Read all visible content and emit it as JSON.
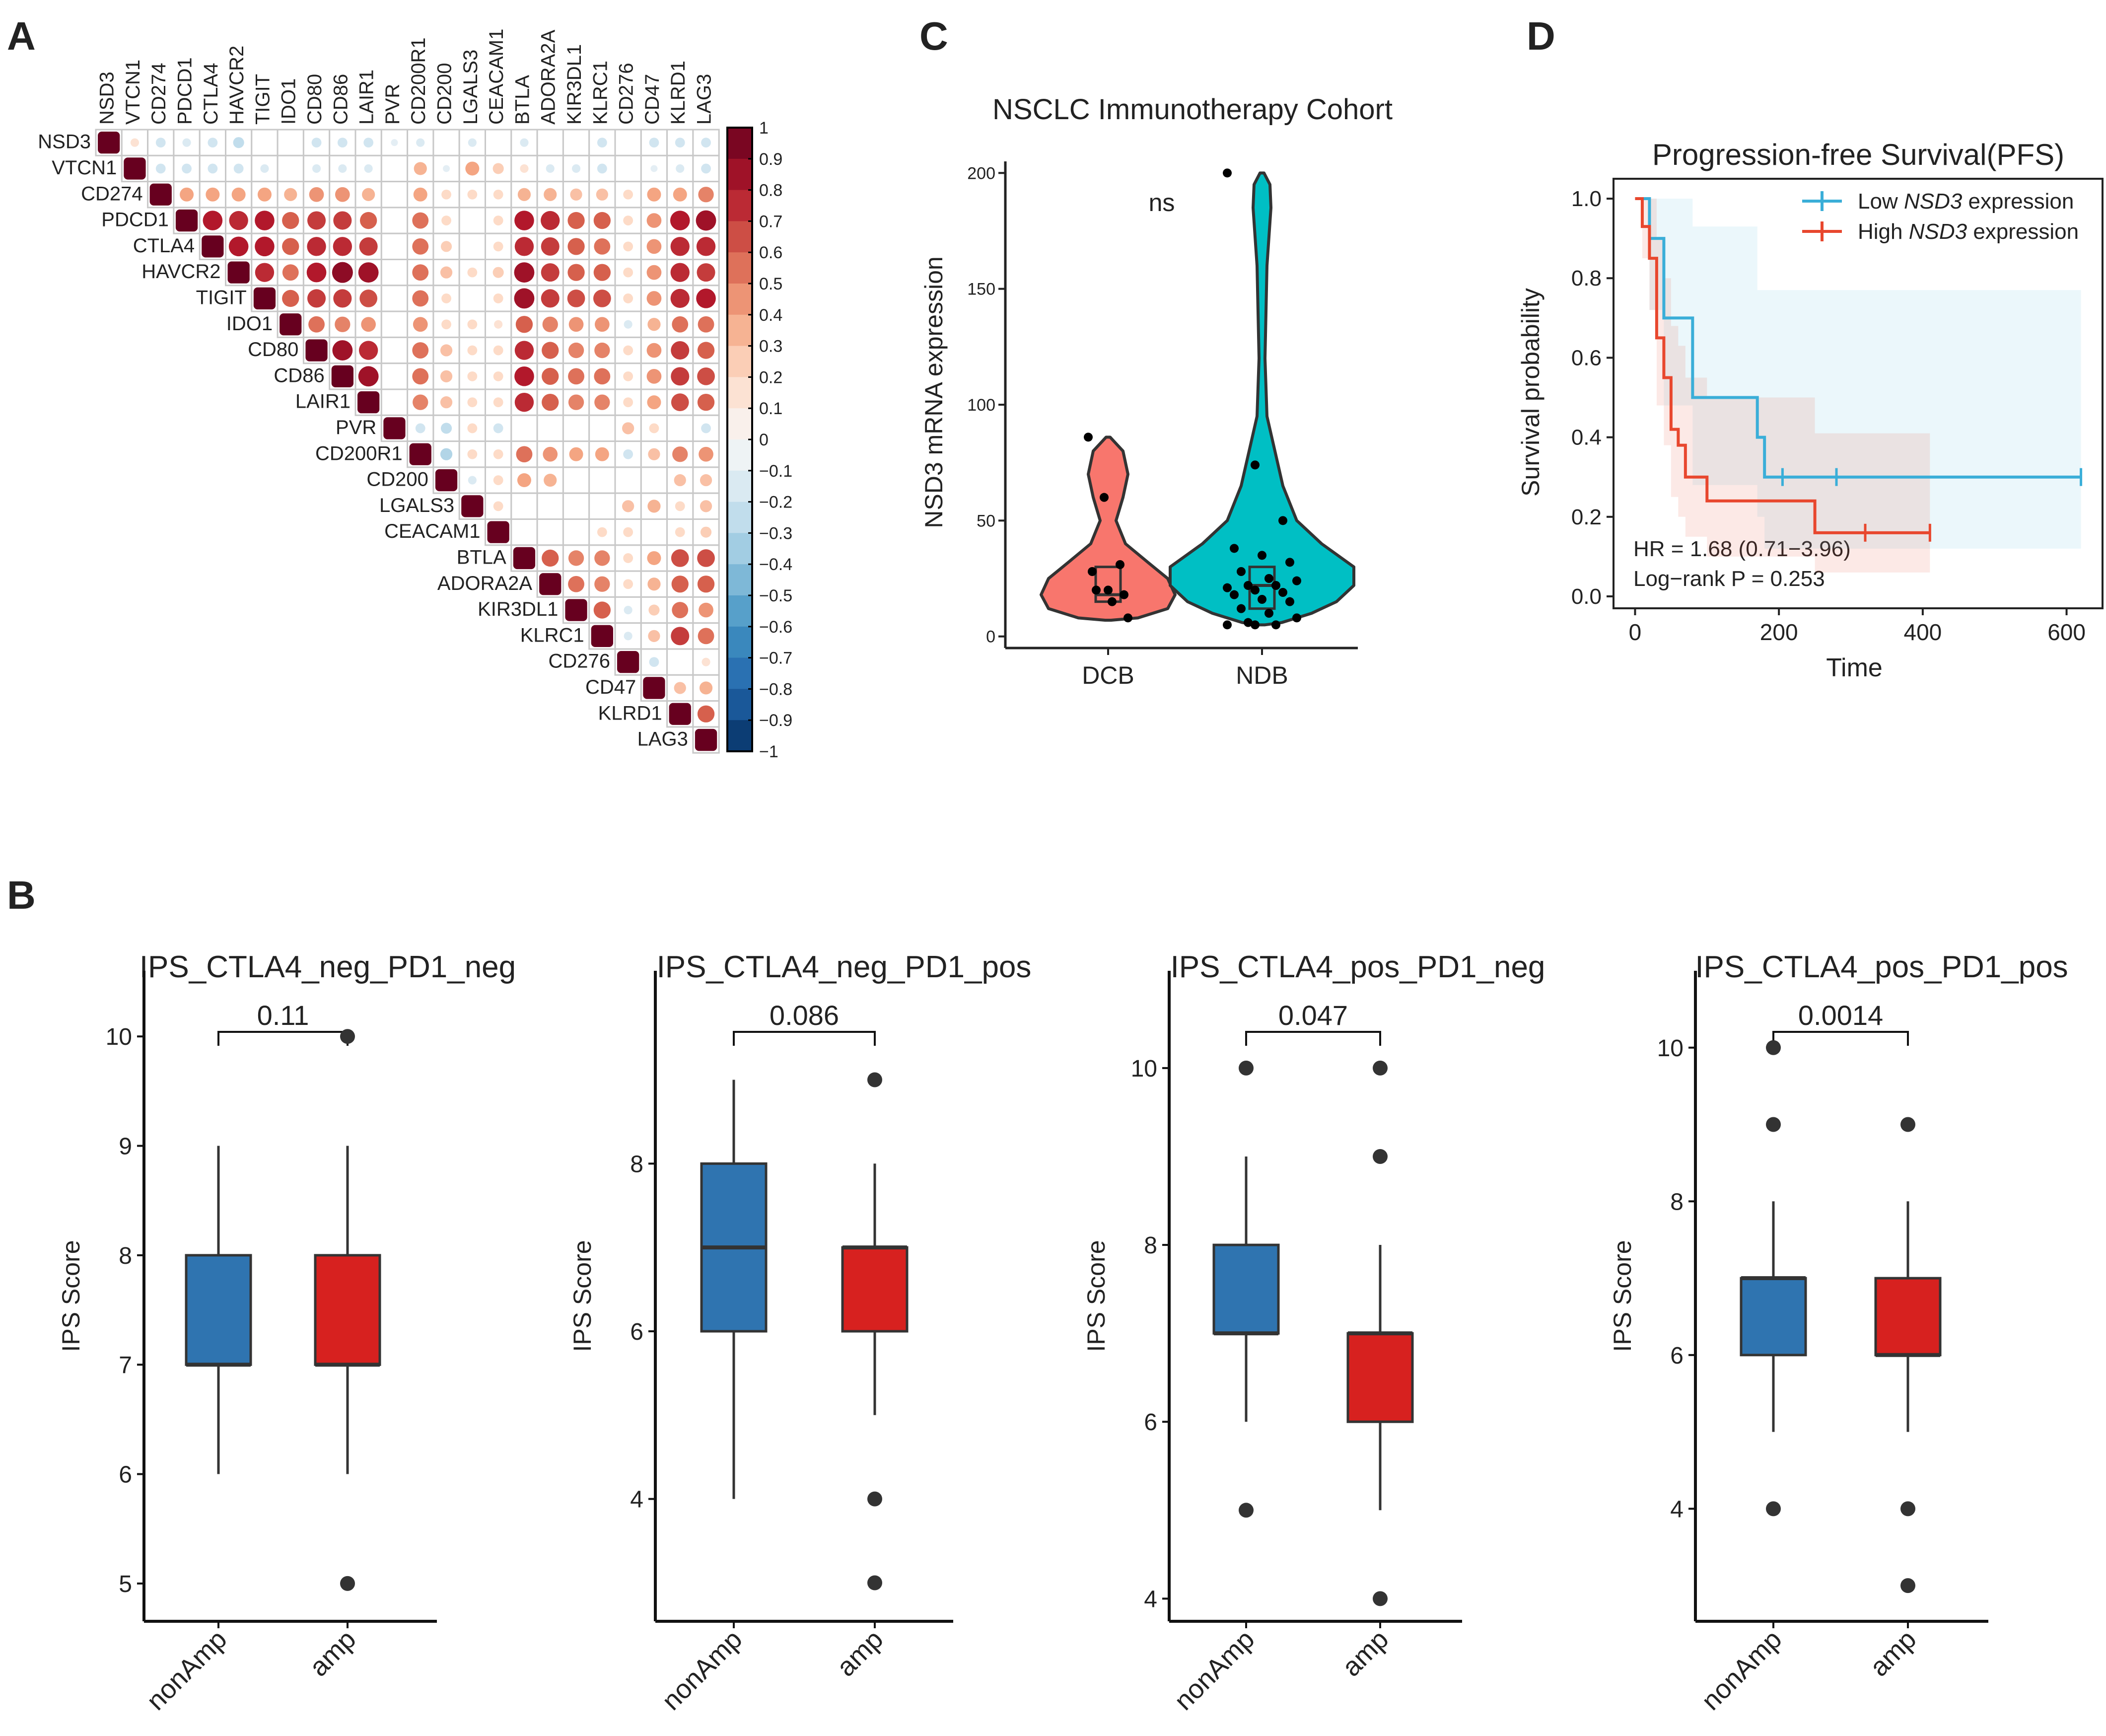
{
  "panel_labels": {
    "a": "A",
    "b": "B",
    "c": "C",
    "d": "D"
  },
  "colors": {
    "blue_box": "#2F74B0",
    "red_box": "#D7211F",
    "violin_dcb": "#F8766D",
    "violin_ndb": "#00BFC4",
    "km_low": "#3AAED8",
    "km_high": "#E8472E",
    "corr_pos": "#67001F",
    "corr_neg": "#053061"
  },
  "chart_data": [
    {
      "id": "A",
      "type": "heatmap",
      "title": "",
      "genes": [
        "NSD3",
        "VTCN1",
        "CD274",
        "PDCD1",
        "CTLA4",
        "HAVCR2",
        "TIGIT",
        "IDO1",
        "CD80",
        "CD86",
        "LAIR1",
        "PVR",
        "CD200R1",
        "CD200",
        "LGALS3",
        "CEACAM1",
        "BTLA",
        "ADORA2A",
        "KIR3DL1",
        "KLRC1",
        "CD276",
        "CD47",
        "KLRD1",
        "LAG3"
      ],
      "matrix_upper": [
        [
          1,
          0.15,
          -0.2,
          -0.15,
          -0.2,
          -0.25,
          0,
          0,
          -0.2,
          -0.2,
          -0.2,
          -0.1,
          -0.15,
          0,
          -0.15,
          0,
          -0.15,
          0,
          0,
          -0.2,
          0,
          -0.2,
          -0.2,
          -0.2
        ],
        [
          null,
          1,
          -0.2,
          -0.2,
          -0.2,
          -0.2,
          -0.15,
          0,
          -0.15,
          -0.15,
          -0.15,
          0,
          0.35,
          -0.1,
          0.4,
          0.25,
          0.15,
          -0.15,
          -0.15,
          -0.2,
          0,
          -0.1,
          -0.15,
          -0.2
        ],
        [
          null,
          null,
          1,
          0.4,
          0.4,
          0.4,
          0.4,
          0.35,
          0.45,
          0.45,
          0.35,
          0,
          0.4,
          0.2,
          0.2,
          0.2,
          0.35,
          0.35,
          0.3,
          0.3,
          0.2,
          0.4,
          0.4,
          0.5
        ],
        [
          null,
          null,
          null,
          1,
          0.8,
          0.75,
          0.8,
          0.6,
          0.7,
          0.7,
          0.6,
          0,
          0.55,
          0.2,
          0,
          0.2,
          0.8,
          0.75,
          0.6,
          0.6,
          0.2,
          0.45,
          0.8,
          0.85
        ],
        [
          null,
          null,
          null,
          null,
          1,
          0.8,
          0.8,
          0.6,
          0.75,
          0.75,
          0.7,
          0,
          0.55,
          0.25,
          0,
          0.2,
          0.75,
          0.7,
          0.6,
          0.55,
          0.2,
          0.45,
          0.75,
          0.75
        ],
        [
          null,
          null,
          null,
          null,
          null,
          1,
          0.75,
          0.55,
          0.8,
          0.9,
          0.85,
          0,
          0.55,
          0.3,
          0.2,
          0.25,
          0.85,
          0.7,
          0.6,
          0.6,
          0.2,
          0.45,
          0.75,
          0.7
        ],
        [
          null,
          null,
          null,
          null,
          null,
          null,
          1,
          0.6,
          0.7,
          0.7,
          0.65,
          0,
          0.55,
          0.2,
          0,
          0.2,
          0.85,
          0.7,
          0.65,
          0.65,
          0.2,
          0.45,
          0.75,
          0.8
        ],
        [
          null,
          null,
          null,
          null,
          null,
          null,
          null,
          1,
          0.55,
          0.5,
          0.45,
          0,
          0.45,
          0.2,
          0.2,
          0.15,
          0.6,
          0.5,
          0.45,
          0.45,
          -0.15,
          0.35,
          0.55,
          0.55
        ],
        [
          null,
          null,
          null,
          null,
          null,
          null,
          null,
          null,
          1,
          0.85,
          0.75,
          0,
          0.55,
          0.3,
          0.2,
          0.2,
          0.75,
          0.6,
          0.5,
          0.5,
          0.2,
          0.45,
          0.7,
          0.6
        ],
        [
          null,
          null,
          null,
          null,
          null,
          null,
          null,
          null,
          null,
          1,
          0.85,
          0,
          0.55,
          0.3,
          0.2,
          0.2,
          0.8,
          0.6,
          0.55,
          0.55,
          0.2,
          0.45,
          0.7,
          0.65
        ],
        [
          null,
          null,
          null,
          null,
          null,
          null,
          null,
          null,
          null,
          null,
          1,
          0,
          0.5,
          0.3,
          0.2,
          0.2,
          0.75,
          0.6,
          0.5,
          0.5,
          0.2,
          0.4,
          0.65,
          0.6
        ],
        [
          null,
          null,
          null,
          null,
          null,
          null,
          null,
          null,
          null,
          null,
          null,
          1,
          -0.2,
          -0.25,
          0.2,
          -0.2,
          0,
          0,
          0,
          0,
          0.3,
          0.2,
          0,
          -0.2
        ],
        [
          null,
          null,
          null,
          null,
          null,
          null,
          null,
          null,
          null,
          null,
          null,
          null,
          1,
          -0.3,
          0.2,
          0.2,
          0.55,
          0.45,
          0.4,
          0.4,
          -0.2,
          0.3,
          0.5,
          0.45
        ],
        [
          null,
          null,
          null,
          null,
          null,
          null,
          null,
          null,
          null,
          null,
          null,
          null,
          null,
          1,
          -0.15,
          0.2,
          0.4,
          0.35,
          0,
          0,
          0,
          0,
          0.3,
          0.3
        ],
        [
          null,
          null,
          null,
          null,
          null,
          null,
          null,
          null,
          null,
          null,
          null,
          null,
          null,
          null,
          1,
          0.2,
          0,
          0,
          0,
          0,
          0.3,
          0.35,
          0.2,
          0.3
        ],
        [
          null,
          null,
          null,
          null,
          null,
          null,
          null,
          null,
          null,
          null,
          null,
          null,
          null,
          null,
          null,
          1,
          0,
          0,
          0,
          0.2,
          0.2,
          0,
          0.2,
          0.25
        ],
        [
          null,
          null,
          null,
          null,
          null,
          null,
          null,
          null,
          null,
          null,
          null,
          null,
          null,
          null,
          null,
          null,
          1,
          0.6,
          0.5,
          0.5,
          0.2,
          0.4,
          0.65,
          0.65
        ],
        [
          null,
          null,
          null,
          null,
          null,
          null,
          null,
          null,
          null,
          null,
          null,
          null,
          null,
          null,
          null,
          null,
          null,
          1,
          0.55,
          0.5,
          0.2,
          0.35,
          0.6,
          0.6
        ],
        [
          null,
          null,
          null,
          null,
          null,
          null,
          null,
          null,
          null,
          null,
          null,
          null,
          null,
          null,
          null,
          null,
          null,
          null,
          1,
          0.6,
          -0.15,
          0.25,
          0.55,
          0.45
        ],
        [
          null,
          null,
          null,
          null,
          null,
          null,
          null,
          null,
          null,
          null,
          null,
          null,
          null,
          null,
          null,
          null,
          null,
          null,
          null,
          1,
          -0.15,
          0.3,
          0.7,
          0.55
        ],
        [
          null,
          null,
          null,
          null,
          null,
          null,
          null,
          null,
          null,
          null,
          null,
          null,
          null,
          null,
          null,
          null,
          null,
          null,
          null,
          null,
          1,
          -0.2,
          0,
          0.15
        ],
        [
          null,
          null,
          null,
          null,
          null,
          null,
          null,
          null,
          null,
          null,
          null,
          null,
          null,
          null,
          null,
          null,
          null,
          null,
          null,
          null,
          null,
          1,
          0.3,
          0.35
        ],
        [
          null,
          null,
          null,
          null,
          null,
          null,
          null,
          null,
          null,
          null,
          null,
          null,
          null,
          null,
          null,
          null,
          null,
          null,
          null,
          null,
          null,
          null,
          1,
          0.6
        ],
        [
          null,
          null,
          null,
          null,
          null,
          null,
          null,
          null,
          null,
          null,
          null,
          null,
          null,
          null,
          null,
          null,
          null,
          null,
          null,
          null,
          null,
          null,
          null,
          1
        ]
      ],
      "legend_ticks": [
        "1",
        "0.9",
        "0.8",
        "0.7",
        "0.6",
        "0.5",
        "0.4",
        "0.3",
        "0.2",
        "0.1",
        "0",
        "−0.1",
        "−0.2",
        "−0.3",
        "−0.4",
        "−0.5",
        "−0.6",
        "−0.7",
        "−0.8",
        "−0.9",
        "−1"
      ],
      "legend_values": [
        1,
        0.9,
        0.8,
        0.7,
        0.6,
        0.5,
        0.4,
        0.3,
        0.2,
        0.1,
        0,
        -0.1,
        -0.2,
        -0.3,
        -0.4,
        -0.5,
        -0.6,
        -0.7,
        -0.8,
        -0.9,
        -1
      ],
      "ylim": [
        -1,
        1
      ]
    },
    {
      "id": "C",
      "type": "violin",
      "title": "NSCLC Immunotherapy Cohort",
      "xlabel": "",
      "ylabel": "NSD3 mRNA expression",
      "annotation": "ns",
      "categories": [
        "DCB",
        "NDB"
      ],
      "yticks": [
        "0",
        "50",
        "100",
        "150",
        "200"
      ],
      "ylim": [
        -5,
        205
      ],
      "points": [
        [
          86,
          60,
          31,
          28,
          20,
          18,
          20,
          15,
          8
        ],
        [
          200,
          74,
          50,
          38,
          35,
          32,
          28,
          25,
          24,
          22,
          22,
          21,
          20,
          19,
          18,
          16,
          15,
          12,
          10,
          8,
          6,
          5,
          5,
          5
        ]
      ],
      "box": [
        {
          "q1": 15,
          "median": 18,
          "q3": 30
        },
        {
          "q1": 12,
          "median": 22,
          "q3": 30
        }
      ]
    },
    {
      "id": "D",
      "type": "line",
      "title": "Progression-free Survival(PFS)",
      "xlabel": "Time",
      "ylabel": "Survival probability",
      "xticks": [
        "0",
        "200",
        "400",
        "600"
      ],
      "yticks": [
        "0.0",
        "0.2",
        "0.4",
        "0.6",
        "0.8",
        "1.0"
      ],
      "xlim": [
        -30,
        650
      ],
      "ylim": [
        -0.03,
        1.05
      ],
      "legend": [
        "Low ",
        "NSD3",
        " expression",
        "High "
      ],
      "legend_placement": "top-right",
      "hr_text": "HR = 1.68 (0.71−3.96)",
      "logrank_text": "Log−rank P = 0.253",
      "series": [
        {
          "name": "Low NSD3 expression",
          "x": [
            0,
            20,
            20,
            40,
            40,
            80,
            80,
            170,
            170,
            180,
            180,
            620
          ],
          "y": [
            1.0,
            1.0,
            0.9,
            0.9,
            0.7,
            0.7,
            0.5,
            0.5,
            0.4,
            0.4,
            0.3,
            0.3
          ],
          "censor_x": [
            205,
            280,
            620
          ],
          "censor_y": [
            0.3,
            0.3,
            0.3
          ],
          "ci_upper": [
            1.0,
            1.0,
            1.0,
            1.0,
            1.0,
            1.0,
            0.93,
            0.93,
            0.77,
            0.77,
            0.77,
            0.77
          ],
          "ci_lower": [
            1.0,
            1.0,
            0.72,
            0.72,
            0.48,
            0.48,
            0.28,
            0.28,
            0.2,
            0.2,
            0.12,
            0.12
          ]
        },
        {
          "name": "High NSD3 expression",
          "x": [
            0,
            10,
            10,
            20,
            20,
            30,
            30,
            40,
            40,
            50,
            50,
            60,
            60,
            70,
            70,
            100,
            100,
            250,
            250,
            410
          ],
          "y": [
            1.0,
            1.0,
            0.93,
            0.93,
            0.85,
            0.85,
            0.65,
            0.65,
            0.55,
            0.55,
            0.42,
            0.42,
            0.38,
            0.38,
            0.3,
            0.3,
            0.24,
            0.24,
            0.16,
            0.16
          ],
          "censor_x": [
            320,
            410
          ],
          "censor_y": [
            0.16,
            0.16
          ],
          "ci_upper": [
            1.0,
            1.0,
            1.0,
            1.0,
            1.0,
            1.0,
            0.9,
            0.9,
            0.8,
            0.8,
            0.68,
            0.68,
            0.63,
            0.63,
            0.55,
            0.55,
            0.5,
            0.5,
            0.41,
            0.41
          ],
          "ci_lower": [
            1.0,
            1.0,
            0.85,
            0.85,
            0.72,
            0.72,
            0.48,
            0.48,
            0.38,
            0.38,
            0.25,
            0.25,
            0.2,
            0.2,
            0.15,
            0.15,
            0.1,
            0.1,
            0.06,
            0.06
          ]
        }
      ]
    },
    {
      "id": "B1",
      "type": "box",
      "title": "IPS_CTLA4_neg_PD1_neg",
      "ylabel": "IPS Score",
      "categories": [
        "nonAmp",
        "amp"
      ],
      "pvalue": "0.11",
      "yticks": [
        "5",
        "6",
        "7",
        "8",
        "9",
        "10"
      ],
      "ylim": [
        4.7,
        10.6
      ],
      "boxes": [
        {
          "whisker_low": 6,
          "q1": 7,
          "median": 7,
          "q3": 8,
          "whisker_high": 9,
          "outliers": []
        },
        {
          "whisker_low": 6,
          "q1": 7,
          "median": 7,
          "q3": 8,
          "whisker_high": 9,
          "outliers": [
            5,
            10
          ]
        }
      ]
    },
    {
      "id": "B2",
      "type": "box",
      "title": "IPS_CTLA4_neg_PD1_pos",
      "ylabel": "IPS Score",
      "categories": [
        "nonAmp",
        "amp"
      ],
      "pvalue": "0.086",
      "yticks": [
        "4",
        "6",
        "8"
      ],
      "ylim": [
        2.6,
        10.3
      ],
      "boxes": [
        {
          "whisker_low": 4,
          "q1": 6,
          "median": 7,
          "q3": 8,
          "whisker_high": 9,
          "outliers": []
        },
        {
          "whisker_low": 5,
          "q1": 6,
          "median": 7,
          "q3": 7,
          "whisker_high": 8,
          "outliers": [
            9,
            4,
            3
          ]
        }
      ]
    },
    {
      "id": "B3",
      "type": "box",
      "title": "IPS_CTLA4_pos_PD1_neg",
      "ylabel": "IPS Score",
      "categories": [
        "nonAmp",
        "amp"
      ],
      "pvalue": "0.047",
      "yticks": [
        "4",
        "6",
        "8",
        "10"
      ],
      "ylim": [
        3.8,
        11.1
      ],
      "boxes": [
        {
          "whisker_low": 6,
          "q1": 7,
          "median": 7,
          "q3": 8,
          "whisker_high": 9,
          "outliers": [
            10,
            5
          ]
        },
        {
          "whisker_low": 5,
          "q1": 6,
          "median": 7,
          "q3": 7,
          "whisker_high": 8,
          "outliers": [
            10,
            9,
            4
          ]
        }
      ]
    },
    {
      "id": "B4",
      "type": "box",
      "title": "IPS_CTLA4_pos_PD1_pos",
      "ylabel": "IPS Score",
      "categories": [
        "nonAmp",
        "amp"
      ],
      "pvalue": "0.0014",
      "yticks": [
        "4",
        "6",
        "8",
        "10"
      ],
      "ylim": [
        2.6,
        11.0
      ],
      "boxes": [
        {
          "whisker_low": 5,
          "q1": 6,
          "median": 7,
          "q3": 7,
          "whisker_high": 8,
          "outliers": [
            10,
            9,
            4
          ]
        },
        {
          "whisker_low": 5,
          "q1": 6,
          "median": 6,
          "q3": 7,
          "whisker_high": 8,
          "outliers": [
            9,
            4,
            3
          ]
        }
      ]
    }
  ]
}
